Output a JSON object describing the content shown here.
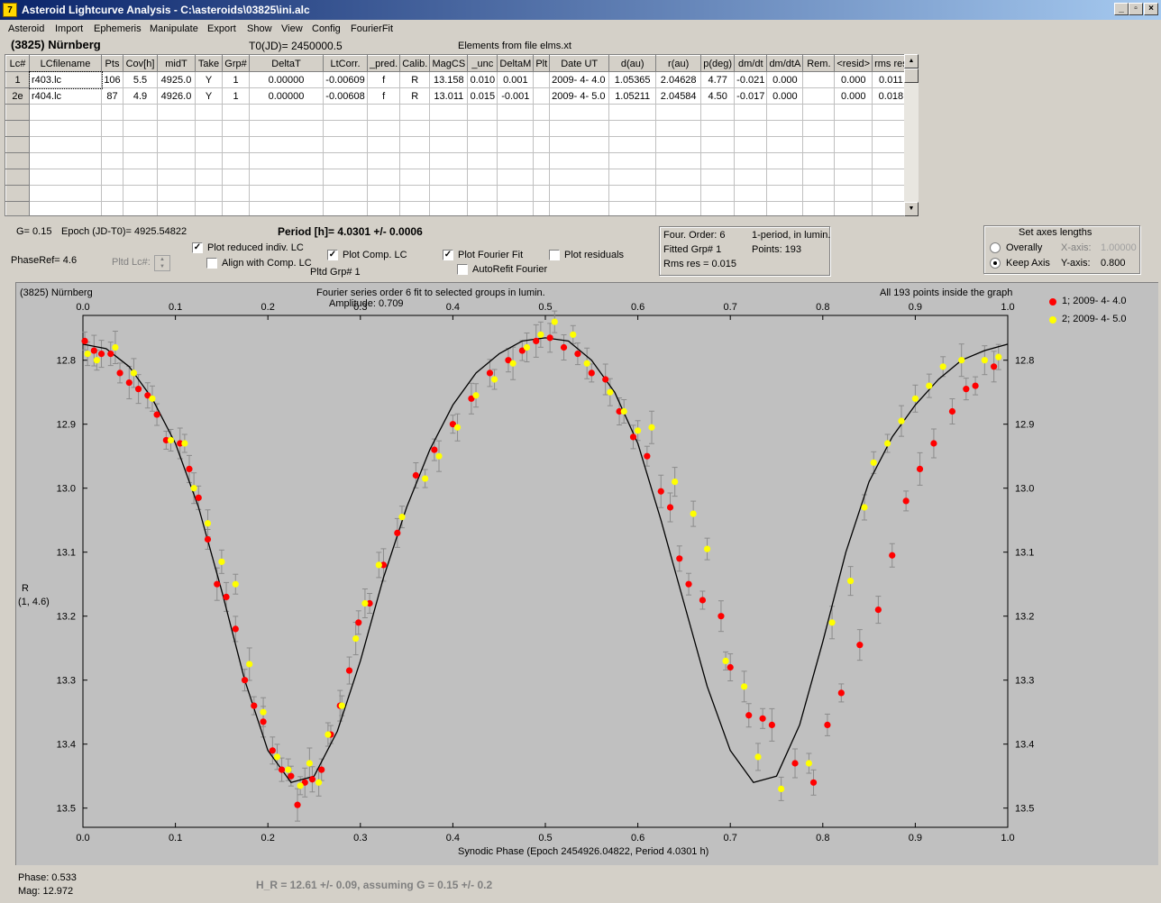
{
  "window": {
    "title": "Asteroid Lightcurve Analysis - C:\\asteroids\\03825\\ini.alc",
    "icon": "app-icon",
    "controls": [
      "minimize-icon",
      "restore-icon",
      "close-icon"
    ]
  },
  "menu": [
    "Asteroid",
    "Import",
    "Ephemeris",
    "Manipulate",
    "Export",
    "Show",
    "View",
    "Config",
    "FourierFit"
  ],
  "header": {
    "asteroid_name": "(3825) Nürnberg",
    "t0": "T0(JD)= 2450000.5",
    "elements": "Elements from file elms.xt"
  },
  "table": {
    "columns": [
      "Lc#",
      "LCfilename",
      "Pts",
      "Cov[h]",
      "midT",
      "Take",
      "Grp#",
      "DeltaT",
      "LtCorr.",
      "_pred.",
      "Calib.",
      "MagCS",
      "_unc",
      "DeltaM",
      "Plt",
      "Date UT",
      "d(au)",
      "r(au)",
      "p(deg)",
      "dm/dt",
      "dm/dtA",
      "Rem.",
      "<resid>",
      "rms res"
    ],
    "rows": [
      [
        "1",
        "r403.lc",
        "106",
        "5.5",
        "4925.0",
        "Y",
        "1",
        "0.00000",
        "-0.00609",
        "f",
        "R",
        "13.158",
        "0.010",
        "0.001",
        "",
        "2009- 4- 4.0",
        "1.05365",
        "2.04628",
        "4.77",
        "-0.021",
        "0.000",
        "",
        "0.000",
        "0.011"
      ],
      [
        "2e",
        "r404.lc",
        "87",
        "4.9",
        "4926.0",
        "Y",
        "1",
        "0.00000",
        "-0.00608",
        "f",
        "R",
        "13.011",
        "0.015",
        "-0.001",
        "",
        "2009- 4- 5.0",
        "1.05211",
        "2.04584",
        "4.50",
        "-0.017",
        "0.000",
        "",
        "0.000",
        "0.018"
      ]
    ],
    "empty_rows": 7
  },
  "controls": {
    "g_value": "G= 0.15",
    "epoch": "Epoch (JD-T0)= 4925.54822",
    "period": "Period [h]= 4.0301 +/- 0.0006",
    "phase_ref": "PhaseRef= 4.6",
    "pltd_lc": "Pltd Lc#:",
    "plot_reduced": {
      "label": "Plot reduced indiv. LC",
      "checked": true
    },
    "align_comp": {
      "label": "Align with Comp. LC",
      "checked": false
    },
    "plot_comp": {
      "label": "Plot Comp. LC",
      "checked": true
    },
    "pltd_grp": "Pltd Grp#  1",
    "plot_fourier": {
      "label": "Plot Fourier Fit",
      "checked": true
    },
    "autorefit": {
      "label": "AutoRefit Fourier",
      "checked": false
    },
    "plot_residuals": {
      "label": "Plot residuals",
      "checked": false
    },
    "four_order": "Four. Order:  6",
    "fitted_grp": "Fitted Grp# 1",
    "rms_res": "Rms res     = 0.015",
    "one_period": "1-period, in lumin.",
    "points": "Points: 193",
    "axes": {
      "title": "Set axes lengths",
      "overally": "Overally",
      "keep_axis": "Keep Axis",
      "selected": "Keep Axis",
      "x_axis_label": "X-axis:",
      "x_axis_value": "1.00000",
      "y_axis_label": "Y-axis:",
      "y_axis_value": "0.800"
    }
  },
  "graph": {
    "object": "(3825) Nürnberg",
    "fit_title": "Fourier series order 6 fit to selected groups in lumin.",
    "amplitude": "Amplitude: 0.709",
    "points_note": "All 193 points inside the graph",
    "ylabel_band": "R",
    "ylabel_params": "(1, 4.6)",
    "xlabel": "Synodic Phase (Epoch 2454926.04822, Period 4.0301 h)",
    "legend": [
      {
        "label": "1; 2009- 4- 4.0",
        "color": "#ff0000"
      },
      {
        "label": "2; 2009- 4- 5.0",
        "color": "#ffff00"
      }
    ]
  },
  "chart_data": {
    "type": "scatter",
    "title": "Fourier series order 6 fit to selected groups in lumin.",
    "xlabel": "Synodic Phase (Epoch 2454926.04822, Period 4.0301 h)",
    "ylabel": "R",
    "xlim": [
      0.0,
      1.0
    ],
    "ylim": [
      13.53,
      12.73
    ],
    "y_inverted": true,
    "x_ticks": [
      "0.0",
      "0.1",
      "0.2",
      "0.3",
      "0.4",
      "0.5",
      "0.6",
      "0.7",
      "0.8",
      "0.9",
      "1.0"
    ],
    "y_ticks": [
      "12.8",
      "12.9",
      "13.0",
      "13.1",
      "13.2",
      "13.3",
      "13.4",
      "13.5"
    ],
    "fit_curve": {
      "name": "Fourier fit",
      "color": "#000000",
      "x": [
        0.0,
        0.025,
        0.05,
        0.075,
        0.1,
        0.125,
        0.15,
        0.175,
        0.2,
        0.225,
        0.25,
        0.275,
        0.3,
        0.325,
        0.35,
        0.375,
        0.4,
        0.425,
        0.45,
        0.475,
        0.5,
        0.525,
        0.55,
        0.575,
        0.6,
        0.625,
        0.65,
        0.675,
        0.7,
        0.725,
        0.75,
        0.775,
        0.8,
        0.825,
        0.85,
        0.875,
        0.9,
        0.925,
        0.95,
        0.975,
        1.0
      ],
      "y": [
        12.775,
        12.782,
        12.81,
        12.86,
        12.93,
        13.03,
        13.16,
        13.3,
        13.41,
        13.46,
        13.45,
        13.38,
        13.27,
        13.14,
        13.03,
        12.94,
        12.87,
        12.82,
        12.79,
        12.77,
        12.765,
        12.77,
        12.8,
        12.85,
        12.93,
        13.05,
        13.18,
        13.31,
        13.41,
        13.46,
        13.45,
        13.37,
        13.24,
        13.1,
        12.99,
        12.92,
        12.87,
        12.83,
        12.8,
        12.785,
        12.775
      ]
    },
    "series": [
      {
        "name": "1; 2009- 4- 4.0",
        "color": "#ff0000",
        "x": [
          0.002,
          0.012,
          0.02,
          0.03,
          0.04,
          0.05,
          0.06,
          0.07,
          0.08,
          0.09,
          0.105,
          0.115,
          0.125,
          0.135,
          0.145,
          0.155,
          0.165,
          0.175,
          0.185,
          0.195,
          0.205,
          0.215,
          0.225,
          0.232,
          0.24,
          0.248,
          0.258,
          0.268,
          0.278,
          0.288,
          0.298,
          0.31,
          0.325,
          0.34,
          0.36,
          0.38,
          0.4,
          0.42,
          0.44,
          0.46,
          0.475,
          0.49,
          0.505,
          0.52,
          0.535,
          0.55,
          0.565,
          0.58,
          0.595,
          0.61,
          0.625,
          0.635,
          0.645,
          0.655,
          0.67,
          0.69,
          0.7,
          0.72,
          0.735,
          0.745,
          0.77,
          0.79,
          0.805,
          0.82,
          0.84,
          0.86,
          0.875,
          0.89,
          0.905,
          0.92,
          0.94,
          0.955,
          0.965,
          0.985
        ],
        "y": [
          12.77,
          12.785,
          12.79,
          12.79,
          12.82,
          12.835,
          12.845,
          12.855,
          12.885,
          12.925,
          12.93,
          12.97,
          13.015,
          13.08,
          13.15,
          13.17,
          13.22,
          13.3,
          13.34,
          13.365,
          13.41,
          13.44,
          13.45,
          13.495,
          13.46,
          13.455,
          13.44,
          13.385,
          13.34,
          13.285,
          13.21,
          13.18,
          13.12,
          13.07,
          12.98,
          12.94,
          12.9,
          12.86,
          12.82,
          12.8,
          12.785,
          12.77,
          12.765,
          12.78,
          12.79,
          12.82,
          12.83,
          12.88,
          12.92,
          12.95,
          13.005,
          13.03,
          13.11,
          13.15,
          13.175,
          13.2,
          13.28,
          13.355,
          13.36,
          13.37,
          13.43,
          13.46,
          13.37,
          13.32,
          13.245,
          13.19,
          13.105,
          13.02,
          12.97,
          12.93,
          12.88,
          12.845,
          12.84,
          12.81
        ]
      },
      {
        "name": "2; 2009- 4- 5.0",
        "color": "#ffff00",
        "x": [
          0.005,
          0.015,
          0.035,
          0.055,
          0.075,
          0.095,
          0.11,
          0.12,
          0.135,
          0.15,
          0.165,
          0.18,
          0.195,
          0.21,
          0.222,
          0.235,
          0.245,
          0.255,
          0.265,
          0.28,
          0.295,
          0.305,
          0.32,
          0.345,
          0.37,
          0.385,
          0.405,
          0.425,
          0.445,
          0.465,
          0.48,
          0.495,
          0.51,
          0.53,
          0.545,
          0.57,
          0.585,
          0.6,
          0.615,
          0.64,
          0.66,
          0.675,
          0.695,
          0.715,
          0.73,
          0.755,
          0.785,
          0.81,
          0.83,
          0.845,
          0.855,
          0.87,
          0.885,
          0.9,
          0.915,
          0.93,
          0.95,
          0.975,
          0.99
        ],
        "y": [
          12.79,
          12.8,
          12.78,
          12.82,
          12.86,
          12.925,
          12.93,
          13.0,
          13.055,
          13.115,
          13.15,
          13.275,
          13.35,
          13.42,
          13.44,
          13.465,
          13.43,
          13.46,
          13.385,
          13.34,
          13.235,
          13.18,
          13.12,
          13.045,
          12.985,
          12.95,
          12.905,
          12.855,
          12.83,
          12.805,
          12.78,
          12.76,
          12.74,
          12.76,
          12.805,
          12.85,
          12.88,
          12.91,
          12.905,
          12.99,
          13.04,
          13.095,
          13.27,
          13.31,
          13.42,
          13.47,
          13.43,
          13.21,
          13.145,
          13.03,
          12.96,
          12.93,
          12.895,
          12.86,
          12.84,
          12.81,
          12.8,
          12.8,
          12.795
        ]
      }
    ]
  },
  "status": {
    "phase": "Phase:  0.533",
    "mag": "Mag:    12.972",
    "h_r": "H_R = 12.61 +/- 0.09, assuming G = 0.15 +/- 0.2"
  }
}
